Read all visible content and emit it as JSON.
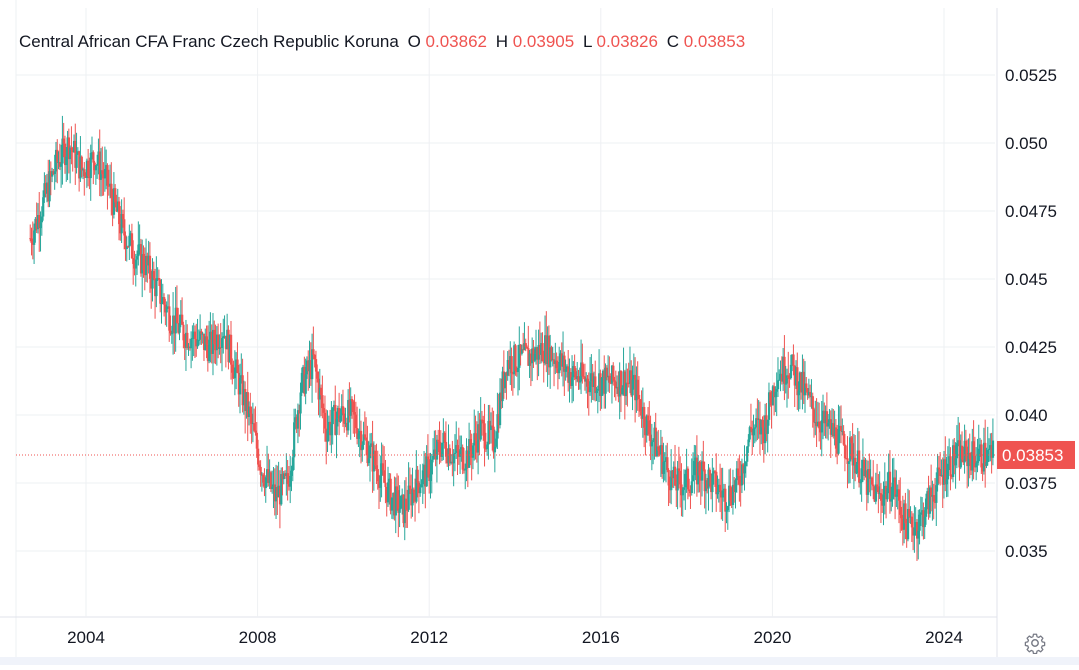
{
  "symbol": {
    "name": "Central African CFA Franc Czech Republic Koruna"
  },
  "ohlc": {
    "open_label": "O",
    "open": "0.03862",
    "high_label": "H",
    "high": "0.03905",
    "low_label": "L",
    "low": "0.03826",
    "close_label": "C",
    "close": "0.03853"
  },
  "colors": {
    "up": "#26a69a",
    "down": "#ef5350",
    "grid": "#eef0f3",
    "text": "#131722"
  },
  "chart_data": {
    "type": "candlestick",
    "x_ticks": [
      "2004",
      "2008",
      "2012",
      "2016",
      "2020",
      "2024"
    ],
    "y_ticks": [
      "0.035",
      "0.0375",
      "0.040",
      "0.0425",
      "0.045",
      "0.0475",
      "0.050",
      "0.0525"
    ],
    "ylim": [
      0.0327,
      0.0545
    ],
    "xlim": [
      2002.6,
      2025.4
    ],
    "last_price": 0.03853,
    "last_price_label": "0.03853",
    "grid": true,
    "series": [
      {
        "x": [
          2002.7,
          2003.0,
          2003.3,
          2003.6,
          2003.9,
          2004.2,
          2004.5,
          2004.8,
          2005.1,
          2005.4,
          2005.7,
          2006.0,
          2006.3,
          2006.6,
          2006.9,
          2007.2,
          2007.5,
          2007.8,
          2008.1,
          2008.4,
          2008.7,
          2009.0,
          2009.3,
          2009.6,
          2009.9,
          2010.2,
          2010.5,
          2010.8,
          2011.1,
          2011.4,
          2011.7,
          2012.0,
          2012.3,
          2012.6,
          2012.9,
          2013.2,
          2013.5,
          2013.8,
          2014.1,
          2014.4,
          2014.7,
          2015.0,
          2015.3,
          2015.6,
          2015.9,
          2016.2,
          2016.5,
          2016.8,
          2017.1,
          2017.4,
          2017.7,
          2018.0,
          2018.3,
          2018.6,
          2018.9,
          2019.2,
          2019.5,
          2019.8,
          2020.1,
          2020.4,
          2020.7,
          2021.0,
          2021.3,
          2021.6,
          2021.9,
          2022.2,
          2022.5,
          2022.8,
          2023.1,
          2023.4,
          2023.7,
          2024.0,
          2024.3,
          2024.6,
          2024.9,
          2025.2
        ],
        "close": [
          0.0465,
          0.0478,
          0.0492,
          0.05,
          0.049,
          0.0495,
          0.0485,
          0.047,
          0.046,
          0.0455,
          0.0445,
          0.0435,
          0.043,
          0.0428,
          0.0425,
          0.0432,
          0.0415,
          0.04,
          0.038,
          0.037,
          0.0375,
          0.041,
          0.042,
          0.0395,
          0.04,
          0.04,
          0.039,
          0.038,
          0.037,
          0.0365,
          0.0375,
          0.038,
          0.039,
          0.0385,
          0.0385,
          0.0395,
          0.039,
          0.042,
          0.042,
          0.0422,
          0.0425,
          0.042,
          0.0415,
          0.0413,
          0.0413,
          0.0412,
          0.0413,
          0.041,
          0.0395,
          0.0385,
          0.0375,
          0.0375,
          0.038,
          0.0375,
          0.037,
          0.0375,
          0.0395,
          0.0395,
          0.0415,
          0.0418,
          0.041,
          0.04,
          0.0395,
          0.039,
          0.0385,
          0.0375,
          0.037,
          0.0375,
          0.036,
          0.036,
          0.037,
          0.038,
          0.0385,
          0.0385,
          0.0385,
          0.03853
        ]
      }
    ]
  }
}
